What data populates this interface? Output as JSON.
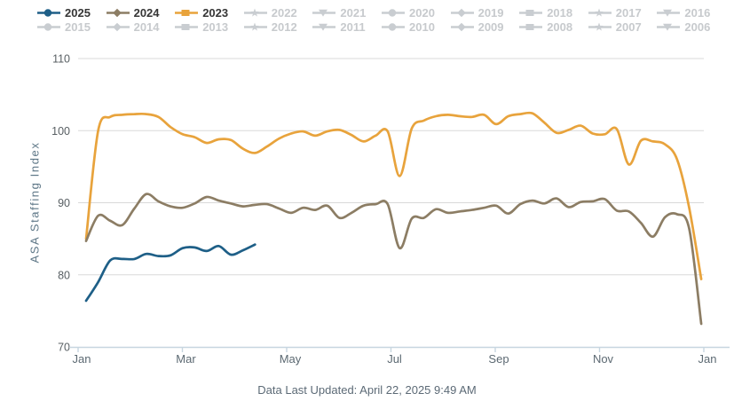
{
  "legend": {
    "active_text_color": "#363636",
    "inactive_marker_color": "#C9CDD1",
    "inactive_text_color": "#C7CACD",
    "years": [
      {
        "label": "2025",
        "marker": "circle",
        "color": "#1E5F87",
        "active": true
      },
      {
        "label": "2024",
        "marker": "diamond",
        "color": "#8C7D64",
        "active": true
      },
      {
        "label": "2023",
        "marker": "square",
        "color": "#E8A33C",
        "active": true
      },
      {
        "label": "2022",
        "marker": "star",
        "color": "#C9CDD1",
        "active": false
      },
      {
        "label": "2021",
        "marker": "arrow-down",
        "color": "#C9CDD1",
        "active": false
      },
      {
        "label": "2020",
        "marker": "circle",
        "color": "#C9CDD1",
        "active": false
      },
      {
        "label": "2019",
        "marker": "diamond",
        "color": "#C9CDD1",
        "active": false
      },
      {
        "label": "2018",
        "marker": "square",
        "color": "#C9CDD1",
        "active": false
      },
      {
        "label": "2017",
        "marker": "star",
        "color": "#C9CDD1",
        "active": false
      },
      {
        "label": "2016",
        "marker": "arrow-down",
        "color": "#C9CDD1",
        "active": false
      },
      {
        "label": "2015",
        "marker": "circle",
        "color": "#C9CDD1",
        "active": false
      },
      {
        "label": "2014",
        "marker": "diamond",
        "color": "#C9CDD1",
        "active": false
      },
      {
        "label": "2013",
        "marker": "square",
        "color": "#C9CDD1",
        "active": false
      },
      {
        "label": "2012",
        "marker": "star",
        "color": "#C9CDD1",
        "active": false
      },
      {
        "label": "2011",
        "marker": "arrow-down",
        "color": "#C9CDD1",
        "active": false
      },
      {
        "label": "2010",
        "marker": "circle",
        "color": "#C9CDD1",
        "active": false
      },
      {
        "label": "2009",
        "marker": "diamond",
        "color": "#C9CDD1",
        "active": false
      },
      {
        "label": "2008",
        "marker": "square",
        "color": "#C9CDD1",
        "active": false
      },
      {
        "label": "2007",
        "marker": "star",
        "color": "#C9CDD1",
        "active": false
      },
      {
        "label": "2006",
        "marker": "arrow-down",
        "color": "#C9CDD1",
        "active": false
      }
    ]
  },
  "chart_data": {
    "type": "line",
    "title": "",
    "ylabel": "ASA Staffing Index",
    "xlabel": "",
    "ylim": [
      70,
      110
    ],
    "yticks": [
      110,
      100,
      90,
      80,
      70
    ],
    "x_tick_labels": [
      "Jan",
      "Mar",
      "May",
      "Jul",
      "Sep",
      "Nov",
      "Jan"
    ],
    "x_axis_note": "weekly data points across one calendar year per series",
    "grid": "horizontal-only",
    "legend_position": "top",
    "gridline_color": "#D9D9D9",
    "axis_color": "#C7D6E0",
    "series": [
      {
        "name": "2023",
        "color": "#E8A33C",
        "marker": "square",
        "values": [
          85.0,
          100.0,
          101.9,
          102.2,
          102.3,
          102.3,
          101.9,
          100.5,
          99.5,
          99.1,
          98.3,
          98.8,
          98.7,
          97.5,
          96.9,
          97.8,
          98.9,
          99.6,
          99.9,
          99.3,
          99.9,
          100.1,
          99.4,
          98.5,
          99.3,
          99.9,
          93.7,
          100.3,
          101.4,
          102.0,
          102.2,
          102.0,
          101.9,
          102.2,
          100.9,
          102.0,
          102.3,
          102.4,
          101.1,
          99.7,
          100.1,
          100.7,
          99.6,
          99.5,
          100.2,
          95.3,
          98.6,
          98.5,
          98.1,
          96.0,
          89.3,
          79.4
        ]
      },
      {
        "name": "2024",
        "color": "#8C7D64",
        "marker": "diamond",
        "values": [
          84.7,
          88.2,
          87.5,
          86.9,
          89.2,
          91.2,
          90.2,
          89.5,
          89.3,
          89.9,
          90.8,
          90.3,
          89.9,
          89.5,
          89.7,
          89.8,
          89.2,
          88.6,
          89.3,
          89.0,
          89.6,
          87.9,
          88.6,
          89.6,
          89.8,
          89.8,
          83.7,
          87.8,
          87.9,
          89.1,
          88.6,
          88.8,
          89.0,
          89.3,
          89.6,
          88.5,
          89.8,
          90.3,
          89.9,
          90.6,
          89.4,
          90.1,
          90.2,
          90.5,
          88.9,
          88.8,
          87.2,
          85.3,
          88.0,
          88.4,
          86.4,
          73.2
        ]
      },
      {
        "name": "2025",
        "color": "#1E5F87",
        "marker": "circle",
        "values": [
          76.4,
          79.0,
          82.0,
          82.2,
          82.2,
          82.9,
          82.6,
          82.7,
          83.7,
          83.8,
          83.3,
          84.0,
          82.8,
          83.4,
          84.2
        ]
      }
    ]
  },
  "footer": {
    "last_updated": "Data Last Updated: April 22, 2025 9:49 AM"
  }
}
